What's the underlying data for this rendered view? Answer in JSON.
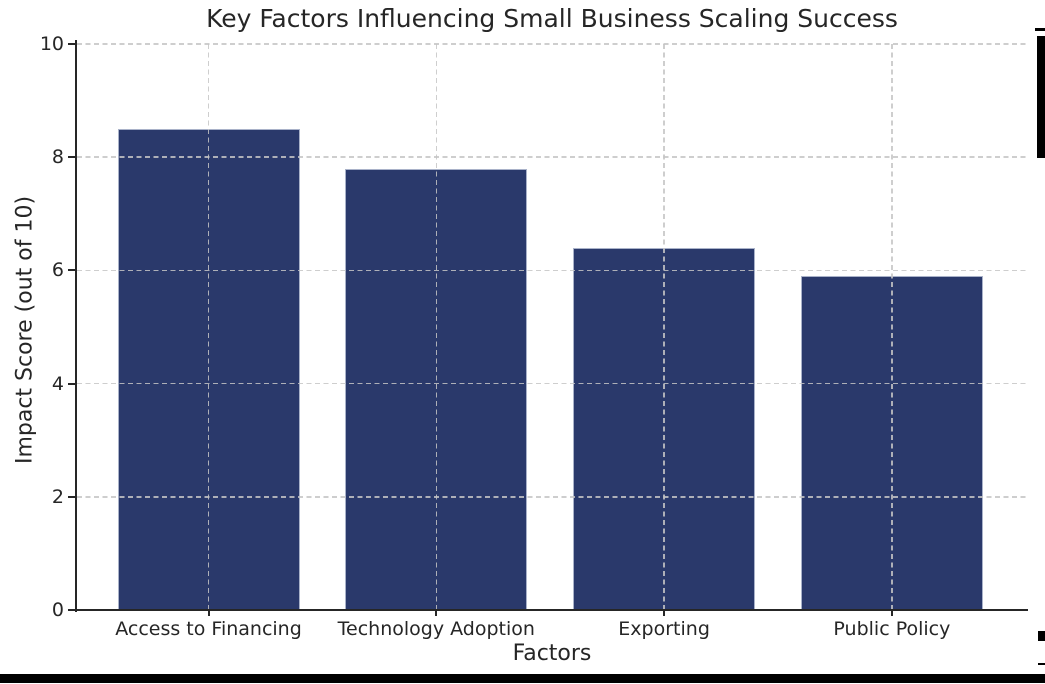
{
  "chart_data": {
    "type": "bar",
    "title": "Key Factors Influencing Small Business Scaling Success",
    "categories": [
      "Access to Financing",
      "Technology Adoption",
      "Exporting",
      "Public Policy"
    ],
    "values": [
      8.5,
      7.8,
      6.4,
      5.9
    ],
    "xlabel": "Factors",
    "ylabel": "Impact Score (out of 10)",
    "ylim": [
      0,
      10
    ],
    "yticks": [
      0,
      2,
      4,
      6,
      8,
      10
    ],
    "grid": "dashed, horizontal and vertical, drawn over bars",
    "legend": "none"
  },
  "colors": {
    "bar": "#2a396b",
    "bar_edge": "#a9b2c9",
    "grid": "rgba(197,197,197,0.85)",
    "text": "#262626",
    "spine": "#262626",
    "window_marks": "#000000",
    "background": "#ffffff"
  },
  "window": {
    "right_edge_marks": [
      "top-dash",
      "scrollbar-thumb",
      "bottom-square",
      "bottom-dash"
    ],
    "bottom_border": "solid black bar"
  }
}
